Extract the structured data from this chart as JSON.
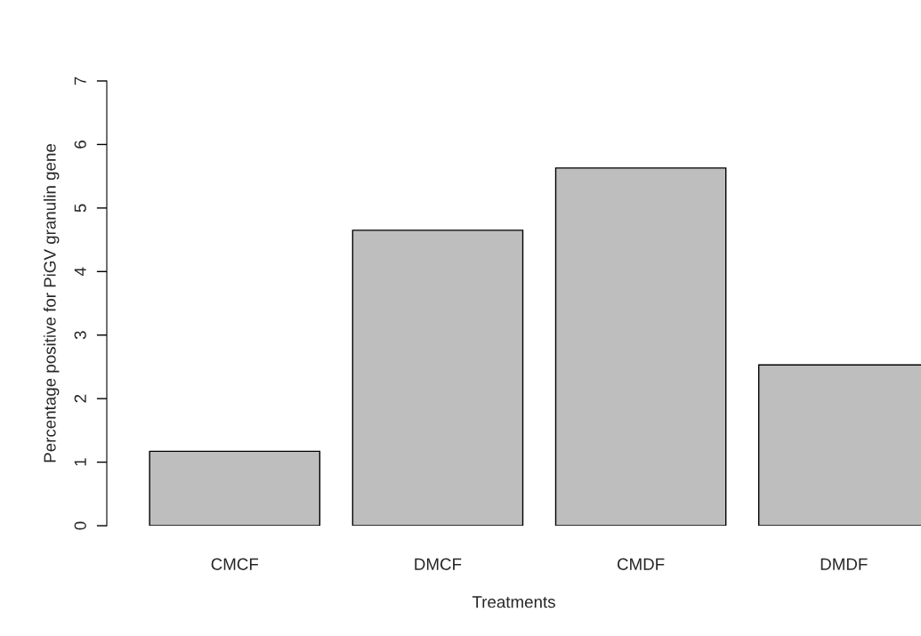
{
  "chart_data": {
    "type": "bar",
    "xlabel": "Treatments",
    "ylabel": "Percentage positive for PiGV granulin gene",
    "categories": [
      "CMCF",
      "DMCF",
      "CMDF",
      "DMDF"
    ],
    "values": [
      1.17,
      4.65,
      5.63,
      2.53
    ],
    "color": "#bebebe",
    "ylim": [
      0,
      7
    ],
    "yticks": [
      0,
      1,
      2,
      3,
      4,
      5,
      6,
      7
    ],
    "grid": false
  }
}
